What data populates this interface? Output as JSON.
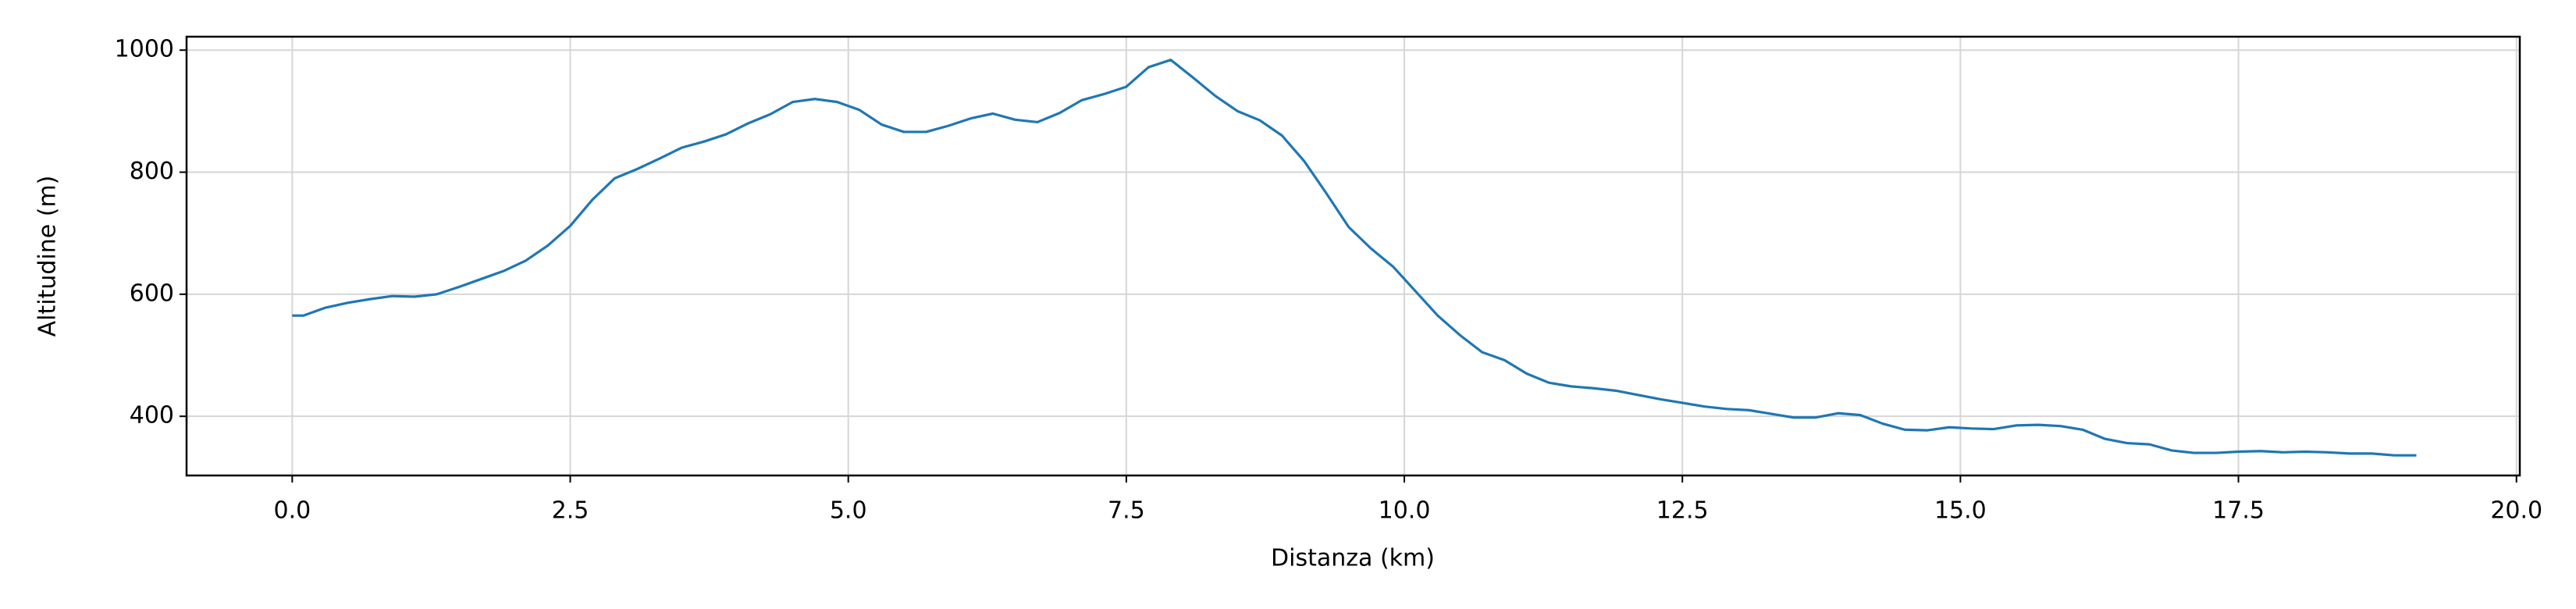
{
  "chart_data": {
    "type": "line",
    "x_label": "Distanza (km)",
    "y_label": "Altitudine (m)",
    "xlim": [
      -0.95,
      20.03
    ],
    "ylim": [
      303,
      1022
    ],
    "xticks": [
      {
        "value": 0,
        "label": "0.0"
      },
      {
        "value": 2.5,
        "label": "2.5"
      },
      {
        "value": 5,
        "label": "5.0"
      },
      {
        "value": 7.5,
        "label": "7.5"
      },
      {
        "value": 10,
        "label": "10.0"
      },
      {
        "value": 12.5,
        "label": "12.5"
      },
      {
        "value": 15,
        "label": "15.0"
      },
      {
        "value": 17.5,
        "label": "17.5"
      },
      {
        "value": 20,
        "label": "20.0"
      }
    ],
    "yticks": [
      400,
      600,
      800,
      1000
    ],
    "grid": true,
    "series": [
      {
        "color": "#1f77b4",
        "x": [
          0.0,
          0.1,
          0.3,
          0.5,
          0.7,
          0.9,
          1.1,
          1.3,
          1.5,
          1.7,
          1.9,
          2.1,
          2.3,
          2.5,
          2.7,
          2.9,
          3.1,
          3.3,
          3.5,
          3.7,
          3.9,
          4.1,
          4.3,
          4.5,
          4.7,
          4.9,
          5.1,
          5.3,
          5.5,
          5.7,
          5.9,
          6.1,
          6.3,
          6.5,
          6.7,
          6.9,
          7.1,
          7.3,
          7.5,
          7.7,
          7.9,
          8.1,
          8.3,
          8.5,
          8.7,
          8.9,
          9.1,
          9.3,
          9.5,
          9.7,
          9.9,
          10.1,
          10.3,
          10.5,
          10.7,
          10.9,
          11.1,
          11.3,
          11.5,
          11.7,
          11.9,
          12.1,
          12.3,
          12.5,
          12.7,
          12.9,
          13.1,
          13.3,
          13.5,
          13.7,
          13.9,
          14.1,
          14.3,
          14.5,
          14.7,
          14.9,
          15.1,
          15.3,
          15.5,
          15.7,
          15.9,
          16.1,
          16.3,
          16.5,
          16.7,
          16.9,
          17.1,
          17.3,
          17.5,
          17.7,
          17.9,
          18.1,
          18.3,
          18.5,
          18.7,
          18.9,
          19.1
        ],
        "values": [
          565,
          565,
          578,
          586,
          592,
          597,
          596,
          600,
          612,
          625,
          638,
          655,
          680,
          712,
          755,
          790,
          805,
          822,
          840,
          850,
          862,
          880,
          895,
          915,
          920,
          915,
          902,
          878,
          866,
          866,
          876,
          888,
          896,
          886,
          882,
          897,
          918,
          928,
          940,
          972,
          984,
          955,
          925,
          900,
          885,
          860,
          818,
          765,
          710,
          675,
          645,
          605,
          565,
          533,
          505,
          492,
          470,
          455,
          449,
          446,
          442,
          435,
          428,
          422,
          416,
          412,
          410,
          404,
          398,
          398,
          405,
          402,
          388,
          378,
          377,
          382,
          380,
          379,
          385,
          386,
          384,
          378,
          363,
          356,
          354,
          344,
          340,
          340,
          342,
          343,
          341,
          342,
          341,
          339,
          339,
          336,
          336
        ]
      }
    ]
  }
}
